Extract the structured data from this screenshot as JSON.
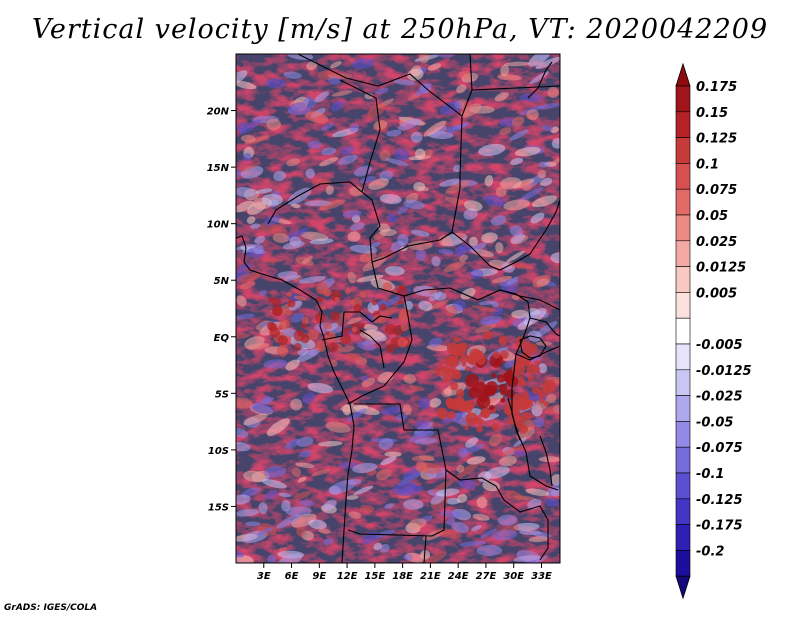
{
  "map": {
    "title": "Vertical velocity [m/s] at 250hPa, VT: 2020042209",
    "variable": "Vertical velocity",
    "units": "m/s",
    "level": "250hPa",
    "valid_time": "2020042209",
    "credit": "GrADS: IGES/COLA",
    "lon_range": [
      0,
      35
    ],
    "lat_range": [
      -20,
      25
    ],
    "lat_ticks": [
      {
        "value": 20,
        "label": "20N"
      },
      {
        "value": 15,
        "label": "15N"
      },
      {
        "value": 10,
        "label": "10N"
      },
      {
        "value": 5,
        "label": "5N"
      },
      {
        "value": 0,
        "label": "EQ"
      },
      {
        "value": -5,
        "label": "5S"
      },
      {
        "value": -10,
        "label": "10S"
      },
      {
        "value": -15,
        "label": "15S"
      }
    ],
    "lon_ticks": [
      {
        "value": 3,
        "label": "3E"
      },
      {
        "value": 6,
        "label": "6E"
      },
      {
        "value": 9,
        "label": "9E"
      },
      {
        "value": 12,
        "label": "12E"
      },
      {
        "value": 15,
        "label": "15E"
      },
      {
        "value": 18,
        "label": "18E"
      },
      {
        "value": 21,
        "label": "21E"
      },
      {
        "value": 24,
        "label": "24E"
      },
      {
        "value": 27,
        "label": "27E"
      },
      {
        "value": 30,
        "label": "30E"
      },
      {
        "value": 33,
        "label": "33E"
      }
    ]
  },
  "colorbar": {
    "levels": [
      {
        "label": "0.175",
        "color": "#a0141a"
      },
      {
        "label": "0.15",
        "color": "#b42228"
      },
      {
        "label": "0.125",
        "color": "#c63a3a"
      },
      {
        "label": "0.1",
        "color": "#d65050"
      },
      {
        "label": "0.075",
        "color": "#e26a66"
      },
      {
        "label": "0.05",
        "color": "#ec8a84"
      },
      {
        "label": "0.025",
        "color": "#f3aaa4"
      },
      {
        "label": "0.0125",
        "color": "#f8c8c2"
      },
      {
        "label": "0.005",
        "color": "#fbe2de"
      },
      {
        "label": "",
        "color": "#ffffff"
      },
      {
        "label": "-0.005",
        "color": "#e6e4fb"
      },
      {
        "label": "-0.0125",
        "color": "#cac6f4"
      },
      {
        "label": "-0.025",
        "color": "#aea8ee"
      },
      {
        "label": "-0.05",
        "color": "#928ae6"
      },
      {
        "label": "-0.075",
        "color": "#766cdc"
      },
      {
        "label": "-0.1",
        "color": "#5c50d0"
      },
      {
        "label": "-0.125",
        "color": "#4436c4"
      },
      {
        "label": "-0.175",
        "color": "#2e20b4"
      },
      {
        "label": "-0.2",
        "color": "#1c0e9c"
      }
    ],
    "top_arrow_color": "#8e0c10",
    "bottom_arrow_color": "#14087c"
  }
}
